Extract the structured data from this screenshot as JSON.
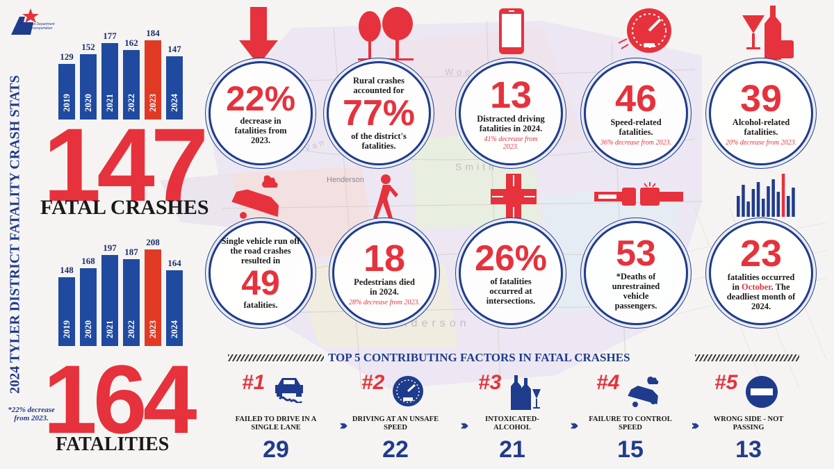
{
  "logo": {
    "text": "Texas Department of Transportation",
    "icon": "txdot-star-logo"
  },
  "title": "2024 TYLER DISTRICT FATALITY CRASH STATS",
  "crashes": {
    "chart_data": {
      "type": "bar",
      "categories": [
        "2019",
        "2020",
        "2021",
        "2022",
        "2023",
        "2024"
      ],
      "values": [
        129,
        152,
        177,
        162,
        184,
        147
      ],
      "highlight": "2023",
      "colors": {
        "normal": "#1f4aa0",
        "highlight": "#e03a25"
      }
    },
    "total": "147",
    "label": "FATAL CRASHES"
  },
  "fatalities": {
    "chart_data": {
      "type": "bar",
      "categories": [
        "2019",
        "2020",
        "2021",
        "2022",
        "2023",
        "2024"
      ],
      "values": [
        148,
        168,
        197,
        187,
        208,
        164
      ],
      "highlight": "2023",
      "colors": {
        "normal": "#1f4aa0",
        "highlight": "#e03a25"
      }
    },
    "total": "164",
    "label": "FATALITIES",
    "note": "*22% decrease from 2023."
  },
  "circles": [
    {
      "icon": "down-arrow-icon",
      "big": "22%",
      "text": "decrease in fatalities from 2023."
    },
    {
      "icon": "trees-icon",
      "pre": "Rural crashes accounted for",
      "big": "77%",
      "text": "of the district's fatalities."
    },
    {
      "icon": "smartphone-icon",
      "big": "13",
      "text": "Distracted driving fatalities in 2024.",
      "sub": "41% decrease from 2023."
    },
    {
      "icon": "speedometer-icon",
      "big": "46",
      "text": "Speed-related fatalities.",
      "sub": "36% decrease from 2023."
    },
    {
      "icon": "alcohol-bottle-glass-icon",
      "big": "39",
      "text": "Alcohol-related fatalities.",
      "sub": "20% decrease from 2023."
    },
    {
      "icon": "overturned-car-icon",
      "pre": "Single vehicle run off the road crashes resulted in",
      "big": "49",
      "text": "fatalities."
    },
    {
      "icon": "pedestrian-crosswalk-icon",
      "big": "18",
      "text": "Pedestrians died in 2024.",
      "sub": "28% decrease from 2023."
    },
    {
      "icon": "intersection-icon",
      "big": "26%",
      "text": "of fatalities occurred at intersections."
    },
    {
      "icon": "seatbelt-icon",
      "big": "53",
      "text": "*Deaths of unrestrained vehicle passengers."
    },
    {
      "icon": "monthly-bars-icon",
      "big": "23",
      "text_a": "fatalities occurred in",
      "month": "October",
      "text_b": ". The deadliest month of 2024."
    }
  ],
  "factors": {
    "title": "TOP 5 CONTRIBUTING FACTORS IN FATAL CRASHES",
    "items": [
      {
        "rank": "#1",
        "icon": "car-swerving-icon",
        "label": "FAILED TO DRIVE IN A SINGLE LANE",
        "count": "29"
      },
      {
        "rank": "#2",
        "icon": "speedometer-icon",
        "label": "DRIVING AT AN UNSAFE SPEED",
        "count": "22"
      },
      {
        "rank": "#3",
        "icon": "bottles-glass-icon",
        "label": "INTOXICATED-ALCOHOL",
        "count": "21"
      },
      {
        "rank": "#4",
        "icon": "overturned-car-icon",
        "label": "FAILURE TO CONTROL SPEED",
        "count": "15"
      },
      {
        "rank": "#5",
        "icon": "no-entry-icon",
        "label": "WRONG SIDE - NOT PASSING",
        "count": "13"
      }
    ]
  },
  "map_labels": [
    "Henderson",
    "Anderson",
    "Smith",
    "Wood",
    "Van Zandt"
  ]
}
